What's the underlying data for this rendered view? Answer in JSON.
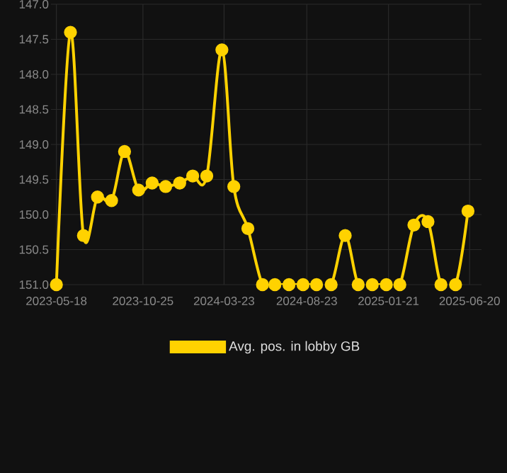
{
  "chart_data": {
    "type": "line",
    "x": [
      "2023-05-18",
      "2023-06-13",
      "2023-07-07",
      "2023-08-02",
      "2023-08-28",
      "2023-09-21",
      "2023-10-17",
      "2023-11-11",
      "2023-12-06",
      "2024-01-01",
      "2024-01-25",
      "2024-02-20",
      "2024-03-19",
      "2024-04-10",
      "2024-05-06",
      "2024-06-02",
      "2024-06-25",
      "2024-07-21",
      "2024-08-16",
      "2024-09-10",
      "2024-10-07",
      "2024-11-02",
      "2024-11-26",
      "2024-12-22",
      "2025-01-17",
      "2025-02-11",
      "2025-03-09",
      "2025-04-04",
      "2025-04-28",
      "2025-05-25",
      "2025-06-17"
    ],
    "series": [
      {
        "name": "Avg. pos. in lobby GB",
        "color": "#ffd200",
        "values": [
          151.0,
          147.4,
          150.3,
          149.75,
          149.8,
          149.1,
          149.65,
          149.55,
          149.6,
          149.55,
          149.45,
          149.45,
          147.65,
          149.6,
          150.2,
          151.0,
          151.0,
          151.0,
          151.0,
          151.0,
          151.0,
          150.3,
          151.0,
          151.0,
          151.0,
          151.0,
          150.15,
          150.1,
          151.0,
          151.0,
          149.95
        ]
      }
    ],
    "xlim": [
      "2023-05-08",
      "2025-07-12"
    ],
    "xticks": [
      "2023-05-18",
      "2023-10-25",
      "2024-03-23",
      "2024-08-23",
      "2025-01-21",
      "2025-06-20"
    ],
    "ylim": [
      151.0,
      147.0
    ],
    "yticks": [
      {
        "value": 147.0,
        "label": "147.0"
      },
      {
        "value": 147.5,
        "label": "147.5"
      },
      {
        "value": 148.0,
        "label": "148.0"
      },
      {
        "value": 148.5,
        "label": "148.5"
      },
      {
        "value": 149.0,
        "label": "149.0"
      },
      {
        "value": 149.5,
        "label": "149.5"
      },
      {
        "value": 150.0,
        "label": "150.0"
      },
      {
        "value": 150.5,
        "label": "150.5"
      },
      {
        "value": 151.0,
        "label": "151.0"
      }
    ],
    "grid": true,
    "legend": "bottom",
    "marker": "circle",
    "line_style": "solid"
  }
}
